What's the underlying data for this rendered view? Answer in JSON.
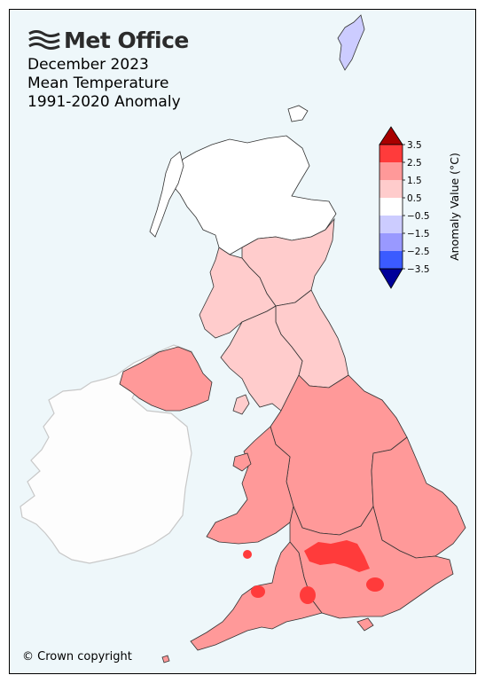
{
  "logo": {
    "text": "Met Office"
  },
  "title": {
    "line1": "December 2023",
    "line2": "Mean Temperature",
    "line3": "1991-2020 Anomaly"
  },
  "copyright": "© Crown copyright",
  "legend": {
    "label": "Anomaly Value (°C)",
    "ticks": [
      "3.5",
      "2.5",
      "1.5",
      "0.5",
      "−0.5",
      "−1.5",
      "−2.5",
      "−3.5"
    ],
    "colors": {
      "above_3_5": "#a80000",
      "2_5_to_3_5": "#ff3b3b",
      "1_5_to_2_5": "#ff9999",
      "0_5_to_1_5": "#ffcccc",
      "minus_0_5_to_0_5": "#ffffff",
      "minus_1_5_to_minus_0_5": "#ccccff",
      "minus_2_5_to_minus_1_5": "#9999ff",
      "minus_3_5_to_minus_2_5": "#3b5bff",
      "below_minus_3_5": "#000099"
    }
  },
  "map": {
    "background_color": "#eef7fa",
    "ireland_color": "#fdfdfd",
    "region_fills": {
      "north_scotland": "#ffffff",
      "east_scotland": "#ffcccc",
      "west_scotland": "#ffcccc",
      "northern_ireland": "#ff9999",
      "ne_england": "#ffcccc",
      "nw_england": "#ffcccc",
      "midlands": "#ff9999",
      "east_anglia": "#ff9999",
      "wales": "#ff9999",
      "south_west": "#ff9999",
      "south_east": "#ff9999",
      "warm_spots": "#ff3b3b"
    }
  }
}
